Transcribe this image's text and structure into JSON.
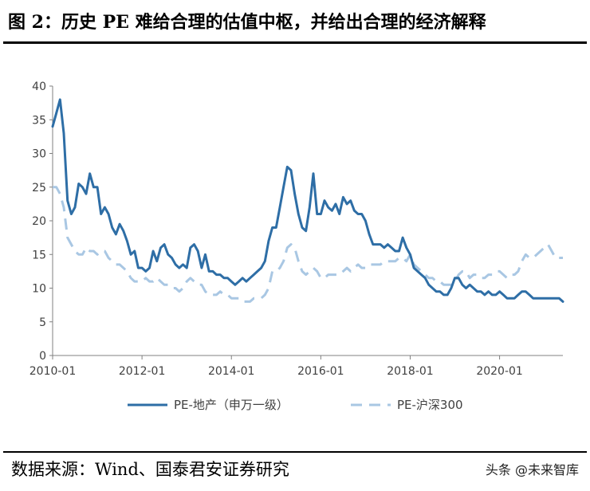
{
  "title": "图 2：历史 PE 难给合理的估值中枢，并给出合理的经济解释",
  "source": "数据来源：Wind、国泰君安证券研究",
  "watermark": "头条 @未来智库",
  "colors": {
    "series1": "#2E6EA6",
    "series2": "#A9C7E3",
    "axis": "#808080"
  },
  "chart_data": {
    "type": "line",
    "x_type": "date",
    "xlim": [
      "2010-01",
      "2021-06"
    ],
    "ylim": [
      0,
      40
    ],
    "y_ticks": [
      0,
      5,
      10,
      15,
      20,
      25,
      30,
      35,
      40
    ],
    "x_ticks": [
      "2010-01",
      "2012-01",
      "2014-01",
      "2016-01",
      "2018-01",
      "2020-01"
    ],
    "grid": false,
    "legend_position": "bottom",
    "series": [
      {
        "name": "PE-地产（申万一级）",
        "style": "solid",
        "color": "#2E6EA6",
        "points": [
          [
            "2010-01",
            34
          ],
          [
            "2010-02",
            36
          ],
          [
            "2010-03",
            38
          ],
          [
            "2010-04",
            33
          ],
          [
            "2010-05",
            23
          ],
          [
            "2010-06",
            21
          ],
          [
            "2010-07",
            22
          ],
          [
            "2010-08",
            25.5
          ],
          [
            "2010-09",
            25
          ],
          [
            "2010-10",
            24
          ],
          [
            "2010-11",
            27
          ],
          [
            "2010-12",
            25
          ],
          [
            "2011-01",
            25
          ],
          [
            "2011-02",
            21
          ],
          [
            "2011-03",
            22
          ],
          [
            "2011-04",
            21
          ],
          [
            "2011-05",
            19
          ],
          [
            "2011-06",
            18
          ],
          [
            "2011-07",
            19.5
          ],
          [
            "2011-08",
            18.5
          ],
          [
            "2011-09",
            17
          ],
          [
            "2011-10",
            15
          ],
          [
            "2011-11",
            15.5
          ],
          [
            "2011-12",
            13
          ],
          [
            "2012-01",
            13
          ],
          [
            "2012-02",
            12.5
          ],
          [
            "2012-03",
            13
          ],
          [
            "2012-04",
            15.5
          ],
          [
            "2012-05",
            14
          ],
          [
            "2012-06",
            16
          ],
          [
            "2012-07",
            16.5
          ],
          [
            "2012-08",
            15
          ],
          [
            "2012-09",
            14.5
          ],
          [
            "2012-10",
            13.5
          ],
          [
            "2012-11",
            13
          ],
          [
            "2012-12",
            13.5
          ],
          [
            "2013-01",
            13
          ],
          [
            "2013-02",
            16
          ],
          [
            "2013-03",
            16.5
          ],
          [
            "2013-04",
            15.5
          ],
          [
            "2013-05",
            13
          ],
          [
            "2013-06",
            15
          ],
          [
            "2013-07",
            12.5
          ],
          [
            "2013-08",
            12.5
          ],
          [
            "2013-09",
            12
          ],
          [
            "2013-10",
            12
          ],
          [
            "2013-11",
            11.5
          ],
          [
            "2013-12",
            11.5
          ],
          [
            "2014-01",
            11
          ],
          [
            "2014-02",
            10.5
          ],
          [
            "2014-03",
            11
          ],
          [
            "2014-04",
            11.5
          ],
          [
            "2014-05",
            11
          ],
          [
            "2014-06",
            11.5
          ],
          [
            "2014-07",
            12
          ],
          [
            "2014-08",
            12.5
          ],
          [
            "2014-09",
            13
          ],
          [
            "2014-10",
            14
          ],
          [
            "2014-11",
            17
          ],
          [
            "2014-12",
            19
          ],
          [
            "2015-01",
            19
          ],
          [
            "2015-02",
            22
          ],
          [
            "2015-03",
            25
          ],
          [
            "2015-04",
            28
          ],
          [
            "2015-05",
            27.5
          ],
          [
            "2015-06",
            24
          ],
          [
            "2015-07",
            21
          ],
          [
            "2015-08",
            19
          ],
          [
            "2015-09",
            18.5
          ],
          [
            "2015-10",
            22
          ],
          [
            "2015-11",
            27
          ],
          [
            "2015-12",
            21
          ],
          [
            "2016-01",
            21
          ],
          [
            "2016-02",
            23
          ],
          [
            "2016-03",
            22
          ],
          [
            "2016-04",
            21.5
          ],
          [
            "2016-05",
            22.5
          ],
          [
            "2016-06",
            21
          ],
          [
            "2016-07",
            23.5
          ],
          [
            "2016-08",
            22.5
          ],
          [
            "2016-09",
            23
          ],
          [
            "2016-10",
            21.5
          ],
          [
            "2016-11",
            21
          ],
          [
            "2016-12",
            21
          ],
          [
            "2017-01",
            20
          ],
          [
            "2017-02",
            18
          ],
          [
            "2017-03",
            16.5
          ],
          [
            "2017-04",
            16.5
          ],
          [
            "2017-05",
            16.5
          ],
          [
            "2017-06",
            16
          ],
          [
            "2017-07",
            16.5
          ],
          [
            "2017-08",
            16
          ],
          [
            "2017-09",
            15.5
          ],
          [
            "2017-10",
            15.5
          ],
          [
            "2017-11",
            17.5
          ],
          [
            "2017-12",
            16
          ],
          [
            "2018-01",
            15
          ],
          [
            "2018-02",
            13
          ],
          [
            "2018-03",
            12.5
          ],
          [
            "2018-04",
            12
          ],
          [
            "2018-05",
            11.5
          ],
          [
            "2018-06",
            10.5
          ],
          [
            "2018-07",
            10
          ],
          [
            "2018-08",
            9.5
          ],
          [
            "2018-09",
            9.5
          ],
          [
            "2018-10",
            9
          ],
          [
            "2018-11",
            9
          ],
          [
            "2018-12",
            10
          ],
          [
            "2019-01",
            11.5
          ],
          [
            "2019-02",
            11.5
          ],
          [
            "2019-03",
            10.5
          ],
          [
            "2019-04",
            10
          ],
          [
            "2019-05",
            10.5
          ],
          [
            "2019-06",
            10
          ],
          [
            "2019-07",
            9.5
          ],
          [
            "2019-08",
            9.5
          ],
          [
            "2019-09",
            9
          ],
          [
            "2019-10",
            9.5
          ],
          [
            "2019-11",
            9
          ],
          [
            "2019-12",
            9
          ],
          [
            "2020-01",
            9.5
          ],
          [
            "2020-02",
            9
          ],
          [
            "2020-03",
            8.5
          ],
          [
            "2020-04",
            8.5
          ],
          [
            "2020-05",
            8.5
          ],
          [
            "2020-06",
            9
          ],
          [
            "2020-07",
            9.5
          ],
          [
            "2020-08",
            9.5
          ],
          [
            "2020-09",
            9
          ],
          [
            "2020-10",
            8.5
          ],
          [
            "2020-11",
            8.5
          ],
          [
            "2020-12",
            8.5
          ],
          [
            "2021-01",
            8.5
          ],
          [
            "2021-02",
            8.5
          ],
          [
            "2021-03",
            8.5
          ],
          [
            "2021-04",
            8.5
          ],
          [
            "2021-05",
            8.5
          ],
          [
            "2021-06",
            8
          ]
        ]
      },
      {
        "name": "PE-沪深300",
        "style": "dashed",
        "color": "#A9C7E3",
        "points": [
          [
            "2010-01",
            25
          ],
          [
            "2010-02",
            25
          ],
          [
            "2010-03",
            24
          ],
          [
            "2010-04",
            22
          ],
          [
            "2010-05",
            17.5
          ],
          [
            "2010-06",
            16.5
          ],
          [
            "2010-07",
            15.5
          ],
          [
            "2010-08",
            15
          ],
          [
            "2010-09",
            15
          ],
          [
            "2010-10",
            16
          ],
          [
            "2010-11",
            15.5
          ],
          [
            "2010-12",
            15.5
          ],
          [
            "2011-01",
            15
          ],
          [
            "2011-02",
            15.5
          ],
          [
            "2011-03",
            15.5
          ],
          [
            "2011-04",
            14.5
          ],
          [
            "2011-05",
            14
          ],
          [
            "2011-06",
            13.5
          ],
          [
            "2011-07",
            13.5
          ],
          [
            "2011-08",
            13
          ],
          [
            "2011-09",
            12.5
          ],
          [
            "2011-10",
            11.5
          ],
          [
            "2011-11",
            11
          ],
          [
            "2011-12",
            11
          ],
          [
            "2012-01",
            11
          ],
          [
            "2012-02",
            11.5
          ],
          [
            "2012-03",
            11
          ],
          [
            "2012-04",
            11
          ],
          [
            "2012-05",
            11.5
          ],
          [
            "2012-06",
            11
          ],
          [
            "2012-07",
            10.5
          ],
          [
            "2012-08",
            10.5
          ],
          [
            "2012-09",
            10
          ],
          [
            "2012-10",
            10
          ],
          [
            "2012-11",
            9.5
          ],
          [
            "2012-12",
            10
          ],
          [
            "2013-01",
            11
          ],
          [
            "2013-02",
            11.5
          ],
          [
            "2013-03",
            11
          ],
          [
            "2013-04",
            10.5
          ],
          [
            "2013-05",
            10.5
          ],
          [
            "2013-06",
            9.5
          ],
          [
            "2013-07",
            9
          ],
          [
            "2013-08",
            9
          ],
          [
            "2013-09",
            9
          ],
          [
            "2013-10",
            9.5
          ],
          [
            "2013-11",
            9
          ],
          [
            "2013-12",
            9
          ],
          [
            "2014-01",
            8.5
          ],
          [
            "2014-02",
            8.5
          ],
          [
            "2014-03",
            8.5
          ],
          [
            "2014-04",
            8
          ],
          [
            "2014-05",
            8
          ],
          [
            "2014-06",
            8
          ],
          [
            "2014-07",
            8.5
          ],
          [
            "2014-08",
            8.5
          ],
          [
            "2014-09",
            8.5
          ],
          [
            "2014-10",
            9
          ],
          [
            "2014-11",
            10
          ],
          [
            "2014-12",
            12.5
          ],
          [
            "2015-01",
            12.5
          ],
          [
            "2015-02",
            13
          ],
          [
            "2015-03",
            14
          ],
          [
            "2015-04",
            16
          ],
          [
            "2015-05",
            16.5
          ],
          [
            "2015-06",
            16
          ],
          [
            "2015-07",
            14
          ],
          [
            "2015-08",
            12.5
          ],
          [
            "2015-09",
            12
          ],
          [
            "2015-10",
            12.5
          ],
          [
            "2015-11",
            13
          ],
          [
            "2015-12",
            12.5
          ],
          [
            "2016-01",
            11.5
          ],
          [
            "2016-02",
            11.5
          ],
          [
            "2016-03",
            12
          ],
          [
            "2016-04",
            12
          ],
          [
            "2016-05",
            12
          ],
          [
            "2016-06",
            12
          ],
          [
            "2016-07",
            12.5
          ],
          [
            "2016-08",
            13
          ],
          [
            "2016-09",
            12.5
          ],
          [
            "2016-10",
            13
          ],
          [
            "2016-11",
            13.5
          ],
          [
            "2016-12",
            13
          ],
          [
            "2017-01",
            13
          ],
          [
            "2017-02",
            13.5
          ],
          [
            "2017-03",
            13.5
          ],
          [
            "2017-04",
            13.5
          ],
          [
            "2017-05",
            13.5
          ],
          [
            "2017-06",
            14
          ],
          [
            "2017-07",
            14
          ],
          [
            "2017-08",
            14
          ],
          [
            "2017-09",
            14
          ],
          [
            "2017-10",
            14.5
          ],
          [
            "2017-11",
            14.5
          ],
          [
            "2017-12",
            14
          ],
          [
            "2018-01",
            15
          ],
          [
            "2018-02",
            13.5
          ],
          [
            "2018-03",
            13
          ],
          [
            "2018-04",
            12.5
          ],
          [
            "2018-05",
            12
          ],
          [
            "2018-06",
            11.5
          ],
          [
            "2018-07",
            11.5
          ],
          [
            "2018-08",
            11
          ],
          [
            "2018-09",
            11
          ],
          [
            "2018-10",
            10.5
          ],
          [
            "2018-11",
            10.5
          ],
          [
            "2018-12",
            10.5
          ],
          [
            "2019-01",
            11
          ],
          [
            "2019-02",
            12
          ],
          [
            "2019-03",
            12.5
          ],
          [
            "2019-04",
            12.5
          ],
          [
            "2019-05",
            11.5
          ],
          [
            "2019-06",
            12
          ],
          [
            "2019-07",
            12
          ],
          [
            "2019-08",
            11.5
          ],
          [
            "2019-09",
            11.5
          ],
          [
            "2019-10",
            12
          ],
          [
            "2019-11",
            12
          ],
          [
            "2019-12",
            12.5
          ],
          [
            "2020-01",
            12.5
          ],
          [
            "2020-02",
            12
          ],
          [
            "2020-03",
            11.5
          ],
          [
            "2020-04",
            12
          ],
          [
            "2020-05",
            12
          ],
          [
            "2020-06",
            12.5
          ],
          [
            "2020-07",
            14
          ],
          [
            "2020-08",
            15
          ],
          [
            "2020-09",
            14.5
          ],
          [
            "2020-10",
            14.5
          ],
          [
            "2020-11",
            15
          ],
          [
            "2020-12",
            15.5
          ],
          [
            "2021-01",
            16
          ],
          [
            "2021-02",
            16.5
          ],
          [
            "2021-03",
            15.5
          ],
          [
            "2021-04",
            14.5
          ],
          [
            "2021-05",
            14.5
          ],
          [
            "2021-06",
            14.5
          ]
        ]
      }
    ]
  }
}
